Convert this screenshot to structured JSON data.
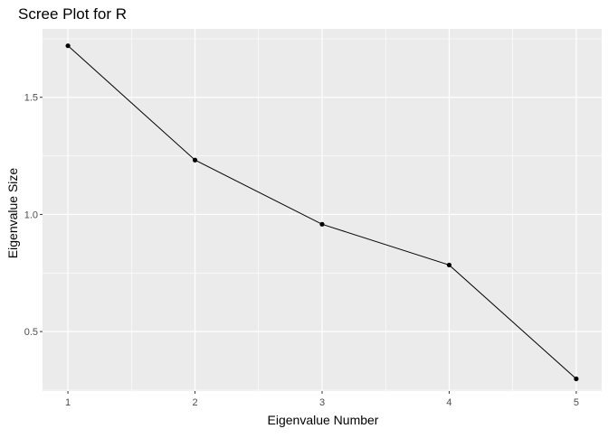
{
  "chart_data": {
    "type": "line",
    "title": "Scree Plot for R",
    "xlabel": "Eigenvalue Number",
    "ylabel": "Eigenvalue Size",
    "x": [
      1,
      2,
      3,
      4,
      5
    ],
    "series": [
      {
        "values": [
          1.72,
          1.232,
          0.958,
          0.784,
          0.298
        ]
      }
    ],
    "xticks": [
      "1",
      "2",
      "3",
      "4",
      "5"
    ],
    "yticks": [
      "0.5",
      "1.0",
      "1.5"
    ],
    "xlim": [
      0.8,
      5.2
    ],
    "ylim": [
      0.246,
      1.792
    ],
    "grid": true,
    "colors": {
      "panel_background": "#ebebeb",
      "grid_major": "#ffffff",
      "line": "#000000",
      "point": "#000000"
    }
  }
}
